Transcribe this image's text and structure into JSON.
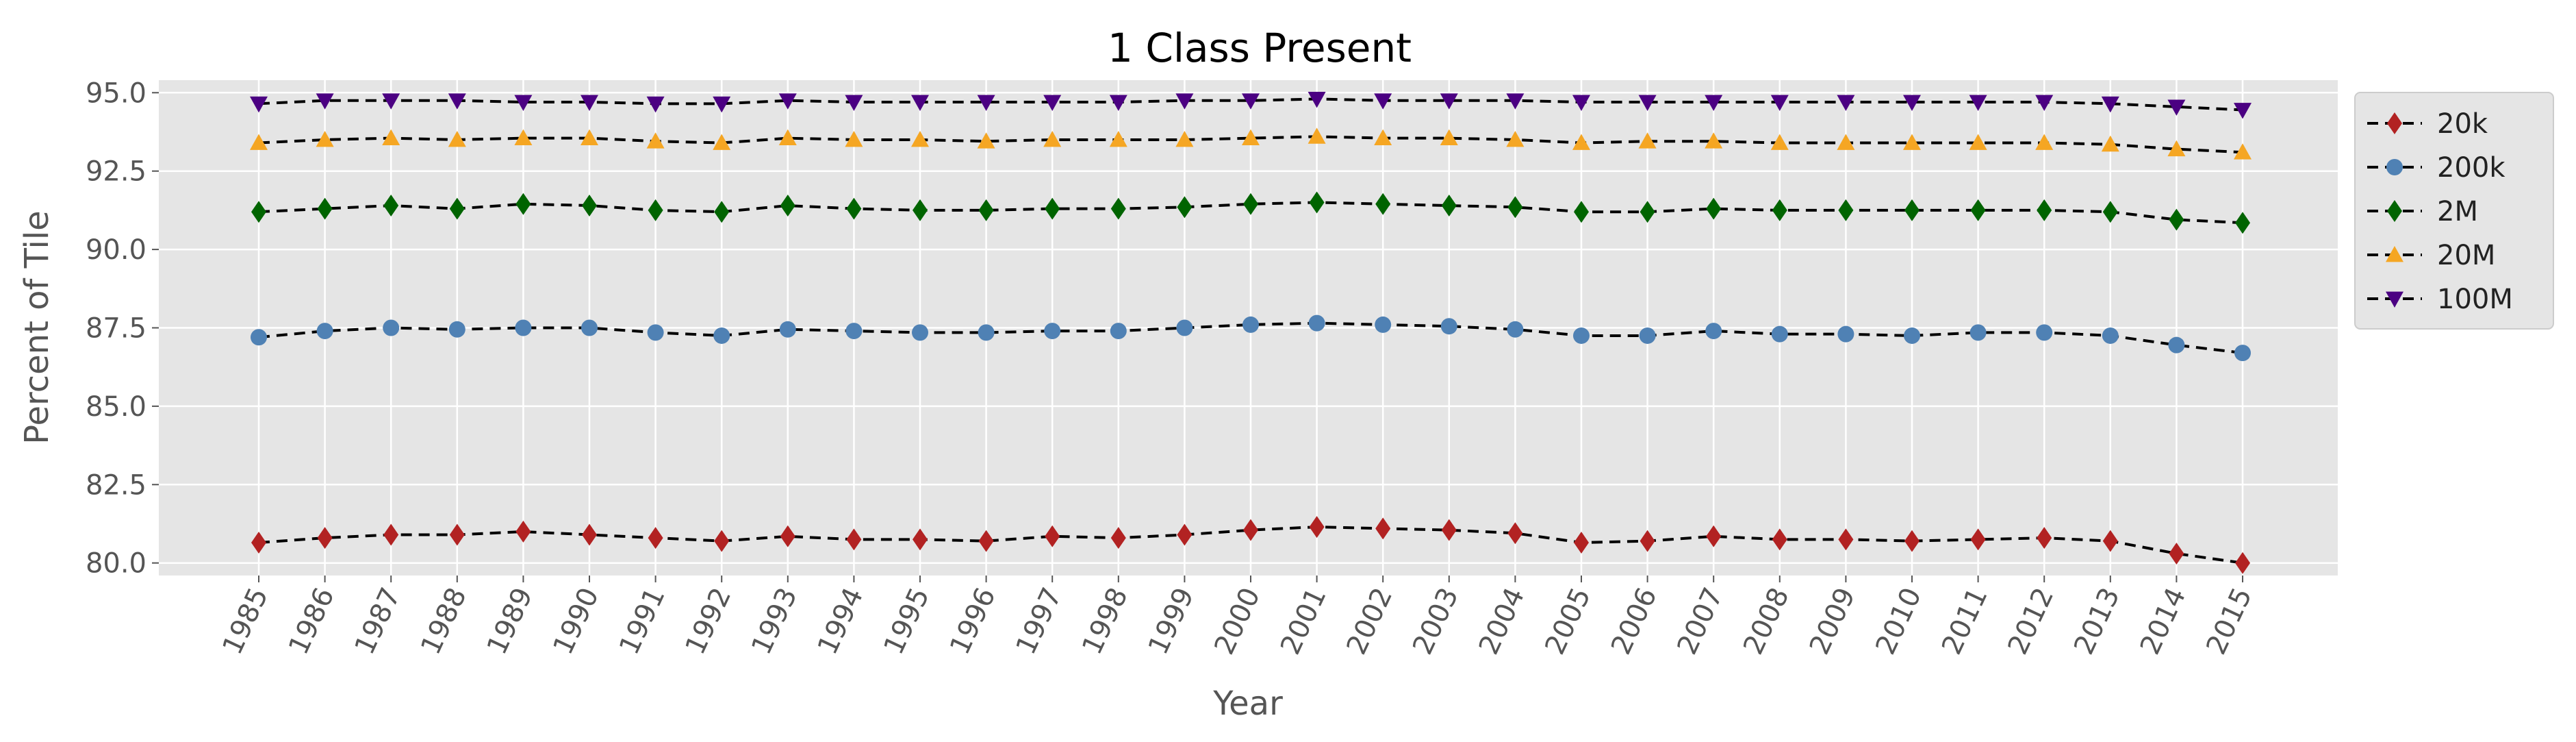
{
  "chart_data": {
    "type": "line",
    "title": "1 Class Present",
    "xlabel": "Year",
    "ylabel": "Percent of Tile",
    "ylim": [
      79.6,
      95.4
    ],
    "yticks": [
      "80.0",
      "82.5",
      "85.0",
      "87.5",
      "90.0",
      "92.5",
      "95.0"
    ],
    "yticks_values": [
      80.0,
      82.5,
      85.0,
      87.5,
      90.0,
      92.5,
      95.0
    ],
    "categories": [
      "1985",
      "1986",
      "1987",
      "1988",
      "1989",
      "1990",
      "1991",
      "1992",
      "1993",
      "1994",
      "1995",
      "1996",
      "1997",
      "1998",
      "1999",
      "2000",
      "2001",
      "2002",
      "2003",
      "2004",
      "2005",
      "2006",
      "2007",
      "2008",
      "2009",
      "2010",
      "2011",
      "2012",
      "2013",
      "2014",
      "2015"
    ],
    "grid": true,
    "legend_position": "outside-top-right",
    "series": [
      {
        "name": "20k",
        "marker": "diamond",
        "color": "#b22222",
        "values": [
          80.65,
          80.8,
          80.9,
          80.9,
          81.0,
          80.9,
          80.8,
          80.7,
          80.85,
          80.75,
          80.75,
          80.7,
          80.85,
          80.8,
          80.9,
          81.05,
          81.15,
          81.1,
          81.05,
          80.95,
          80.65,
          80.7,
          80.85,
          80.75,
          80.75,
          80.7,
          80.75,
          80.8,
          80.7,
          80.3,
          80.0
        ]
      },
      {
        "name": "200k",
        "marker": "circle",
        "color": "#4f81b4",
        "values": [
          87.2,
          87.4,
          87.5,
          87.45,
          87.5,
          87.5,
          87.35,
          87.25,
          87.45,
          87.4,
          87.35,
          87.35,
          87.4,
          87.4,
          87.5,
          87.6,
          87.65,
          87.6,
          87.55,
          87.45,
          87.25,
          87.25,
          87.4,
          87.3,
          87.3,
          87.25,
          87.35,
          87.35,
          87.25,
          86.95,
          86.7
        ]
      },
      {
        "name": "2M",
        "marker": "diamond",
        "color": "#006400",
        "values": [
          91.2,
          91.3,
          91.4,
          91.3,
          91.45,
          91.4,
          91.25,
          91.2,
          91.4,
          91.3,
          91.25,
          91.25,
          91.3,
          91.3,
          91.35,
          91.45,
          91.5,
          91.45,
          91.4,
          91.35,
          91.2,
          91.2,
          91.3,
          91.25,
          91.25,
          91.25,
          91.25,
          91.25,
          91.2,
          90.95,
          90.85
        ]
      },
      {
        "name": "20M",
        "marker": "triangle-up",
        "color": "#f5a623",
        "values": [
          93.4,
          93.5,
          93.55,
          93.5,
          93.55,
          93.55,
          93.45,
          93.4,
          93.55,
          93.5,
          93.5,
          93.45,
          93.5,
          93.5,
          93.5,
          93.55,
          93.6,
          93.55,
          93.55,
          93.5,
          93.4,
          93.45,
          93.45,
          93.4,
          93.4,
          93.4,
          93.4,
          93.4,
          93.35,
          93.2,
          93.1
        ]
      },
      {
        "name": "100M",
        "marker": "triangle-down",
        "color": "#4b0082",
        "values": [
          94.65,
          94.75,
          94.75,
          94.75,
          94.7,
          94.7,
          94.65,
          94.65,
          94.75,
          94.7,
          94.7,
          94.7,
          94.7,
          94.7,
          94.75,
          94.75,
          94.8,
          94.75,
          94.75,
          94.75,
          94.7,
          94.7,
          94.7,
          94.7,
          94.7,
          94.7,
          94.7,
          94.7,
          94.65,
          94.55,
          94.45
        ]
      }
    ]
  }
}
